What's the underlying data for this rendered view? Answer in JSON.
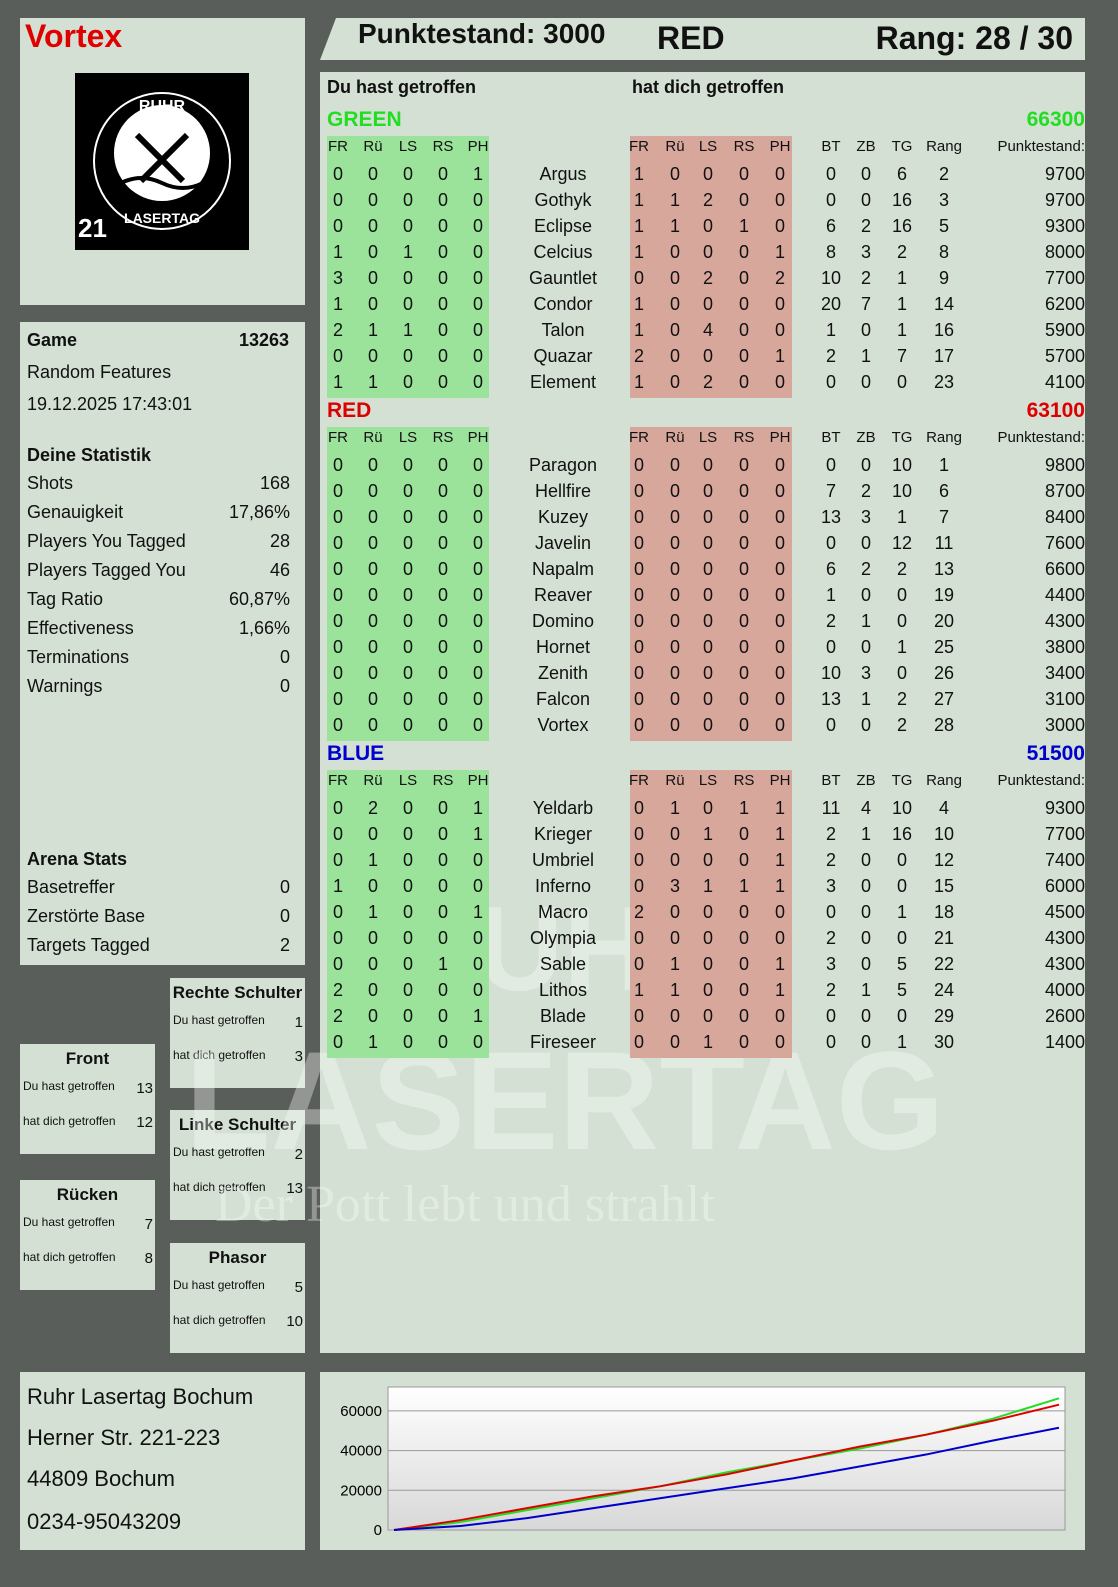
{
  "player": {
    "name": "Vortex",
    "logo_text": "RUHR LASERTAG",
    "logo_number": "21"
  },
  "header": {
    "score_label": "Punktestand: 3000",
    "team": "RED",
    "rank_label": "Rang: 28 / 30"
  },
  "game": {
    "label": "Game",
    "id": "13263",
    "mode": "Random Features",
    "datetime": "19.12.2025 17:43:01"
  },
  "stats": {
    "title": "Deine Statistik",
    "items": [
      {
        "label": "Shots",
        "value": "168"
      },
      {
        "label": "Genauigkeit",
        "value": "17,86%"
      },
      {
        "label": "Players You Tagged",
        "value": "28"
      },
      {
        "label": "Players Tagged You",
        "value": "46"
      },
      {
        "label": "Tag Ratio",
        "value": "60,87%"
      },
      {
        "label": "Effectiveness",
        "value": "1,66%"
      },
      {
        "label": "Terminations",
        "value": "0"
      },
      {
        "label": "Warnings",
        "value": "0"
      }
    ]
  },
  "arena": {
    "title": "Arena Stats",
    "items": [
      {
        "label": "Basetreffer",
        "value": "0"
      },
      {
        "label": "Zerstörte Base",
        "value": "0"
      },
      {
        "label": "Targets Tagged",
        "value": "2"
      }
    ]
  },
  "zones": [
    {
      "title": "Rechte Schulter",
      "hit_label": "Du hast getroffen",
      "hit": "1",
      "got_label": "hat dich getroffen",
      "got": "3"
    },
    {
      "title": "Front",
      "hit_label": "Du hast getroffen",
      "hit": "13",
      "got_label": "hat dich getroffen",
      "got": "12"
    },
    {
      "title": "Linke Schulter",
      "hit_label": "Du hast getroffen",
      "hit": "2",
      "got_label": "hat dich getroffen",
      "got": "13"
    },
    {
      "title": "Rücken",
      "hit_label": "Du hast getroffen",
      "hit": "7",
      "got_label": "hat dich getroffen",
      "got": "8"
    },
    {
      "title": "Phasor",
      "hit_label": "Du hast getroffen",
      "hit": "5",
      "got_label": "hat dich getroffen",
      "got": "10"
    }
  ],
  "address": {
    "line1": "Ruhr Lasertag Bochum",
    "line2": "Herner Str. 221-223",
    "line3": "44809 Bochum",
    "phone": "0234-95043209"
  },
  "watermark": {
    "line1": "RUHR",
    "line2": "LASERTAG",
    "slogan": "Der Pott lebt und strahlt"
  },
  "table": {
    "you_hit": "Du hast getroffen",
    "hit_you": "hat dich getroffen",
    "cols_hit": [
      "FR",
      "Rü",
      "LS",
      "RS",
      "PH"
    ],
    "cols_stats": [
      "BT",
      "ZB",
      "TG",
      "Rang",
      "Punktestand:"
    ],
    "teams": [
      {
        "name": "GREEN",
        "score": "66300",
        "color": "#22dd22",
        "rows": [
          [
            "Argus",
            [
              0,
              0,
              0,
              0,
              1
            ],
            [
              1,
              0,
              0,
              0,
              0
            ],
            0,
            0,
            6,
            2,
            9700
          ],
          [
            "Gothyk",
            [
              0,
              0,
              0,
              0,
              0
            ],
            [
              1,
              1,
              2,
              0,
              0
            ],
            0,
            0,
            16,
            3,
            9700
          ],
          [
            "Eclipse",
            [
              0,
              0,
              0,
              0,
              0
            ],
            [
              1,
              1,
              0,
              1,
              0
            ],
            6,
            2,
            16,
            5,
            9300
          ],
          [
            "Celcius",
            [
              1,
              0,
              1,
              0,
              0
            ],
            [
              1,
              0,
              0,
              0,
              1
            ],
            8,
            3,
            2,
            8,
            8000
          ],
          [
            "Gauntlet",
            [
              3,
              0,
              0,
              0,
              0
            ],
            [
              0,
              0,
              2,
              0,
              2
            ],
            10,
            2,
            1,
            9,
            7700
          ],
          [
            "Condor",
            [
              1,
              0,
              0,
              0,
              0
            ],
            [
              1,
              0,
              0,
              0,
              0
            ],
            20,
            7,
            1,
            14,
            6200
          ],
          [
            "Talon",
            [
              2,
              1,
              1,
              0,
              0
            ],
            [
              1,
              0,
              4,
              0,
              0
            ],
            1,
            0,
            1,
            16,
            5900
          ],
          [
            "Quazar",
            [
              0,
              0,
              0,
              0,
              0
            ],
            [
              2,
              0,
              0,
              0,
              1
            ],
            2,
            1,
            7,
            17,
            5700
          ],
          [
            "Element",
            [
              1,
              1,
              0,
              0,
              0
            ],
            [
              1,
              0,
              2,
              0,
              0
            ],
            0,
            0,
            0,
            23,
            4100
          ]
        ]
      },
      {
        "name": "RED",
        "score": "63100",
        "color": "#dd0000",
        "rows": [
          [
            "Paragon",
            [
              0,
              0,
              0,
              0,
              0
            ],
            [
              0,
              0,
              0,
              0,
              0
            ],
            0,
            0,
            10,
            1,
            9800
          ],
          [
            "Hellfire",
            [
              0,
              0,
              0,
              0,
              0
            ],
            [
              0,
              0,
              0,
              0,
              0
            ],
            7,
            2,
            10,
            6,
            8700
          ],
          [
            "Kuzey",
            [
              0,
              0,
              0,
              0,
              0
            ],
            [
              0,
              0,
              0,
              0,
              0
            ],
            13,
            3,
            1,
            7,
            8400
          ],
          [
            "Javelin",
            [
              0,
              0,
              0,
              0,
              0
            ],
            [
              0,
              0,
              0,
              0,
              0
            ],
            0,
            0,
            12,
            11,
            7600
          ],
          [
            "Napalm",
            [
              0,
              0,
              0,
              0,
              0
            ],
            [
              0,
              0,
              0,
              0,
              0
            ],
            6,
            2,
            2,
            13,
            6600
          ],
          [
            "Reaver",
            [
              0,
              0,
              0,
              0,
              0
            ],
            [
              0,
              0,
              0,
              0,
              0
            ],
            1,
            0,
            0,
            19,
            4400
          ],
          [
            "Domino",
            [
              0,
              0,
              0,
              0,
              0
            ],
            [
              0,
              0,
              0,
              0,
              0
            ],
            2,
            1,
            0,
            20,
            4300
          ],
          [
            "Hornet",
            [
              0,
              0,
              0,
              0,
              0
            ],
            [
              0,
              0,
              0,
              0,
              0
            ],
            0,
            0,
            1,
            25,
            3800
          ],
          [
            "Zenith",
            [
              0,
              0,
              0,
              0,
              0
            ],
            [
              0,
              0,
              0,
              0,
              0
            ],
            10,
            3,
            0,
            26,
            3400
          ],
          [
            "Falcon",
            [
              0,
              0,
              0,
              0,
              0
            ],
            [
              0,
              0,
              0,
              0,
              0
            ],
            13,
            1,
            2,
            27,
            3100
          ],
          [
            "Vortex",
            [
              0,
              0,
              0,
              0,
              0
            ],
            [
              0,
              0,
              0,
              0,
              0
            ],
            0,
            0,
            2,
            28,
            3000
          ]
        ]
      },
      {
        "name": "BLUE",
        "score": "51500",
        "color": "#0000cc",
        "rows": [
          [
            "Yeldarb",
            [
              0,
              2,
              0,
              0,
              1
            ],
            [
              0,
              1,
              0,
              1,
              1
            ],
            11,
            4,
            10,
            4,
            9300
          ],
          [
            "Krieger",
            [
              0,
              0,
              0,
              0,
              1
            ],
            [
              0,
              0,
              1,
              0,
              1
            ],
            2,
            1,
            16,
            10,
            7700
          ],
          [
            "Umbriel",
            [
              0,
              1,
              0,
              0,
              0
            ],
            [
              0,
              0,
              0,
              0,
              1
            ],
            2,
            0,
            0,
            12,
            7400
          ],
          [
            "Inferno",
            [
              1,
              0,
              0,
              0,
              0
            ],
            [
              0,
              3,
              1,
              1,
              1
            ],
            3,
            0,
            0,
            15,
            6000
          ],
          [
            "Macro",
            [
              0,
              1,
              0,
              0,
              1
            ],
            [
              2,
              0,
              0,
              0,
              0
            ],
            0,
            0,
            1,
            18,
            4500
          ],
          [
            "Olympia",
            [
              0,
              0,
              0,
              0,
              0
            ],
            [
              0,
              0,
              0,
              0,
              0
            ],
            2,
            0,
            0,
            21,
            4300
          ],
          [
            "Sable",
            [
              0,
              0,
              0,
              1,
              0
            ],
            [
              0,
              1,
              0,
              0,
              1
            ],
            3,
            0,
            5,
            22,
            4300
          ],
          [
            "Lithos",
            [
              2,
              0,
              0,
              0,
              0
            ],
            [
              1,
              1,
              0,
              0,
              1
            ],
            2,
            1,
            5,
            24,
            4000
          ],
          [
            "Blade",
            [
              2,
              0,
              0,
              0,
              1
            ],
            [
              0,
              0,
              0,
              0,
              0
            ],
            0,
            0,
            0,
            29,
            2600
          ],
          [
            "Fireseer",
            [
              0,
              1,
              0,
              0,
              0
            ],
            [
              0,
              0,
              1,
              0,
              0
            ],
            0,
            0,
            1,
            30,
            1400
          ]
        ]
      }
    ]
  },
  "chart_data": {
    "type": "line",
    "ylim": [
      0,
      70000
    ],
    "yticks": [
      "0",
      "20000",
      "40000",
      "60000"
    ],
    "grid": true,
    "x": [
      0,
      1,
      2,
      3,
      4,
      5,
      6,
      7,
      8,
      9,
      10
    ],
    "series": [
      {
        "color": "#22dd22",
        "values": [
          0,
          4000,
          10000,
          16000,
          22000,
          29000,
          35000,
          41000,
          48000,
          56000,
          66300
        ]
      },
      {
        "color": "#dd0000",
        "values": [
          0,
          5000,
          11000,
          17000,
          22000,
          28000,
          35000,
          42000,
          48000,
          55000,
          63100
        ]
      },
      {
        "color": "#0000cc",
        "values": [
          0,
          2000,
          6000,
          11000,
          16000,
          21000,
          26000,
          32000,
          38000,
          45000,
          51500
        ]
      }
    ]
  }
}
